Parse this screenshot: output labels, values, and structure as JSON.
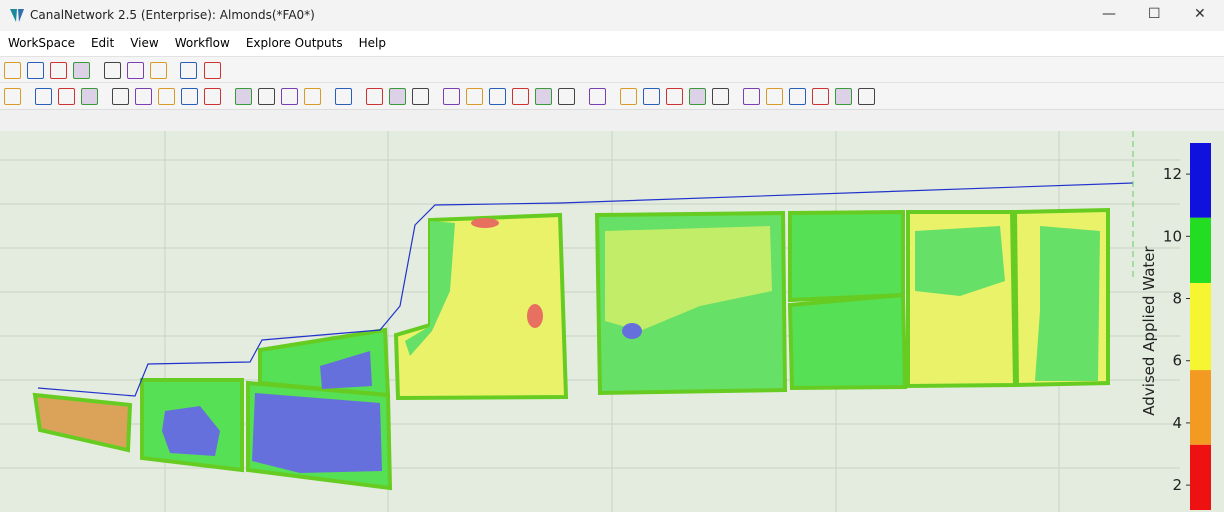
{
  "window": {
    "title": "CanalNetwork 2.5  (Enterprise): Almonds(*FA0*)"
  },
  "menu": [
    "WorkSpace",
    "Edit",
    "View",
    "Workflow",
    "Explore Outputs",
    "Help"
  ],
  "colorbar": {
    "label": "Advised Applied Water",
    "ylim": [
      1.2,
      13.0
    ],
    "ticks": [
      2,
      4,
      6,
      8,
      10,
      12
    ],
    "band_edges": [
      1.2,
      3.3,
      5.7,
      8.5,
      10.6,
      13.0
    ],
    "band_colors": [
      "#ee1111",
      "#f39a22",
      "#f5f531",
      "#22dd22",
      "#1111dd"
    ]
  }
}
